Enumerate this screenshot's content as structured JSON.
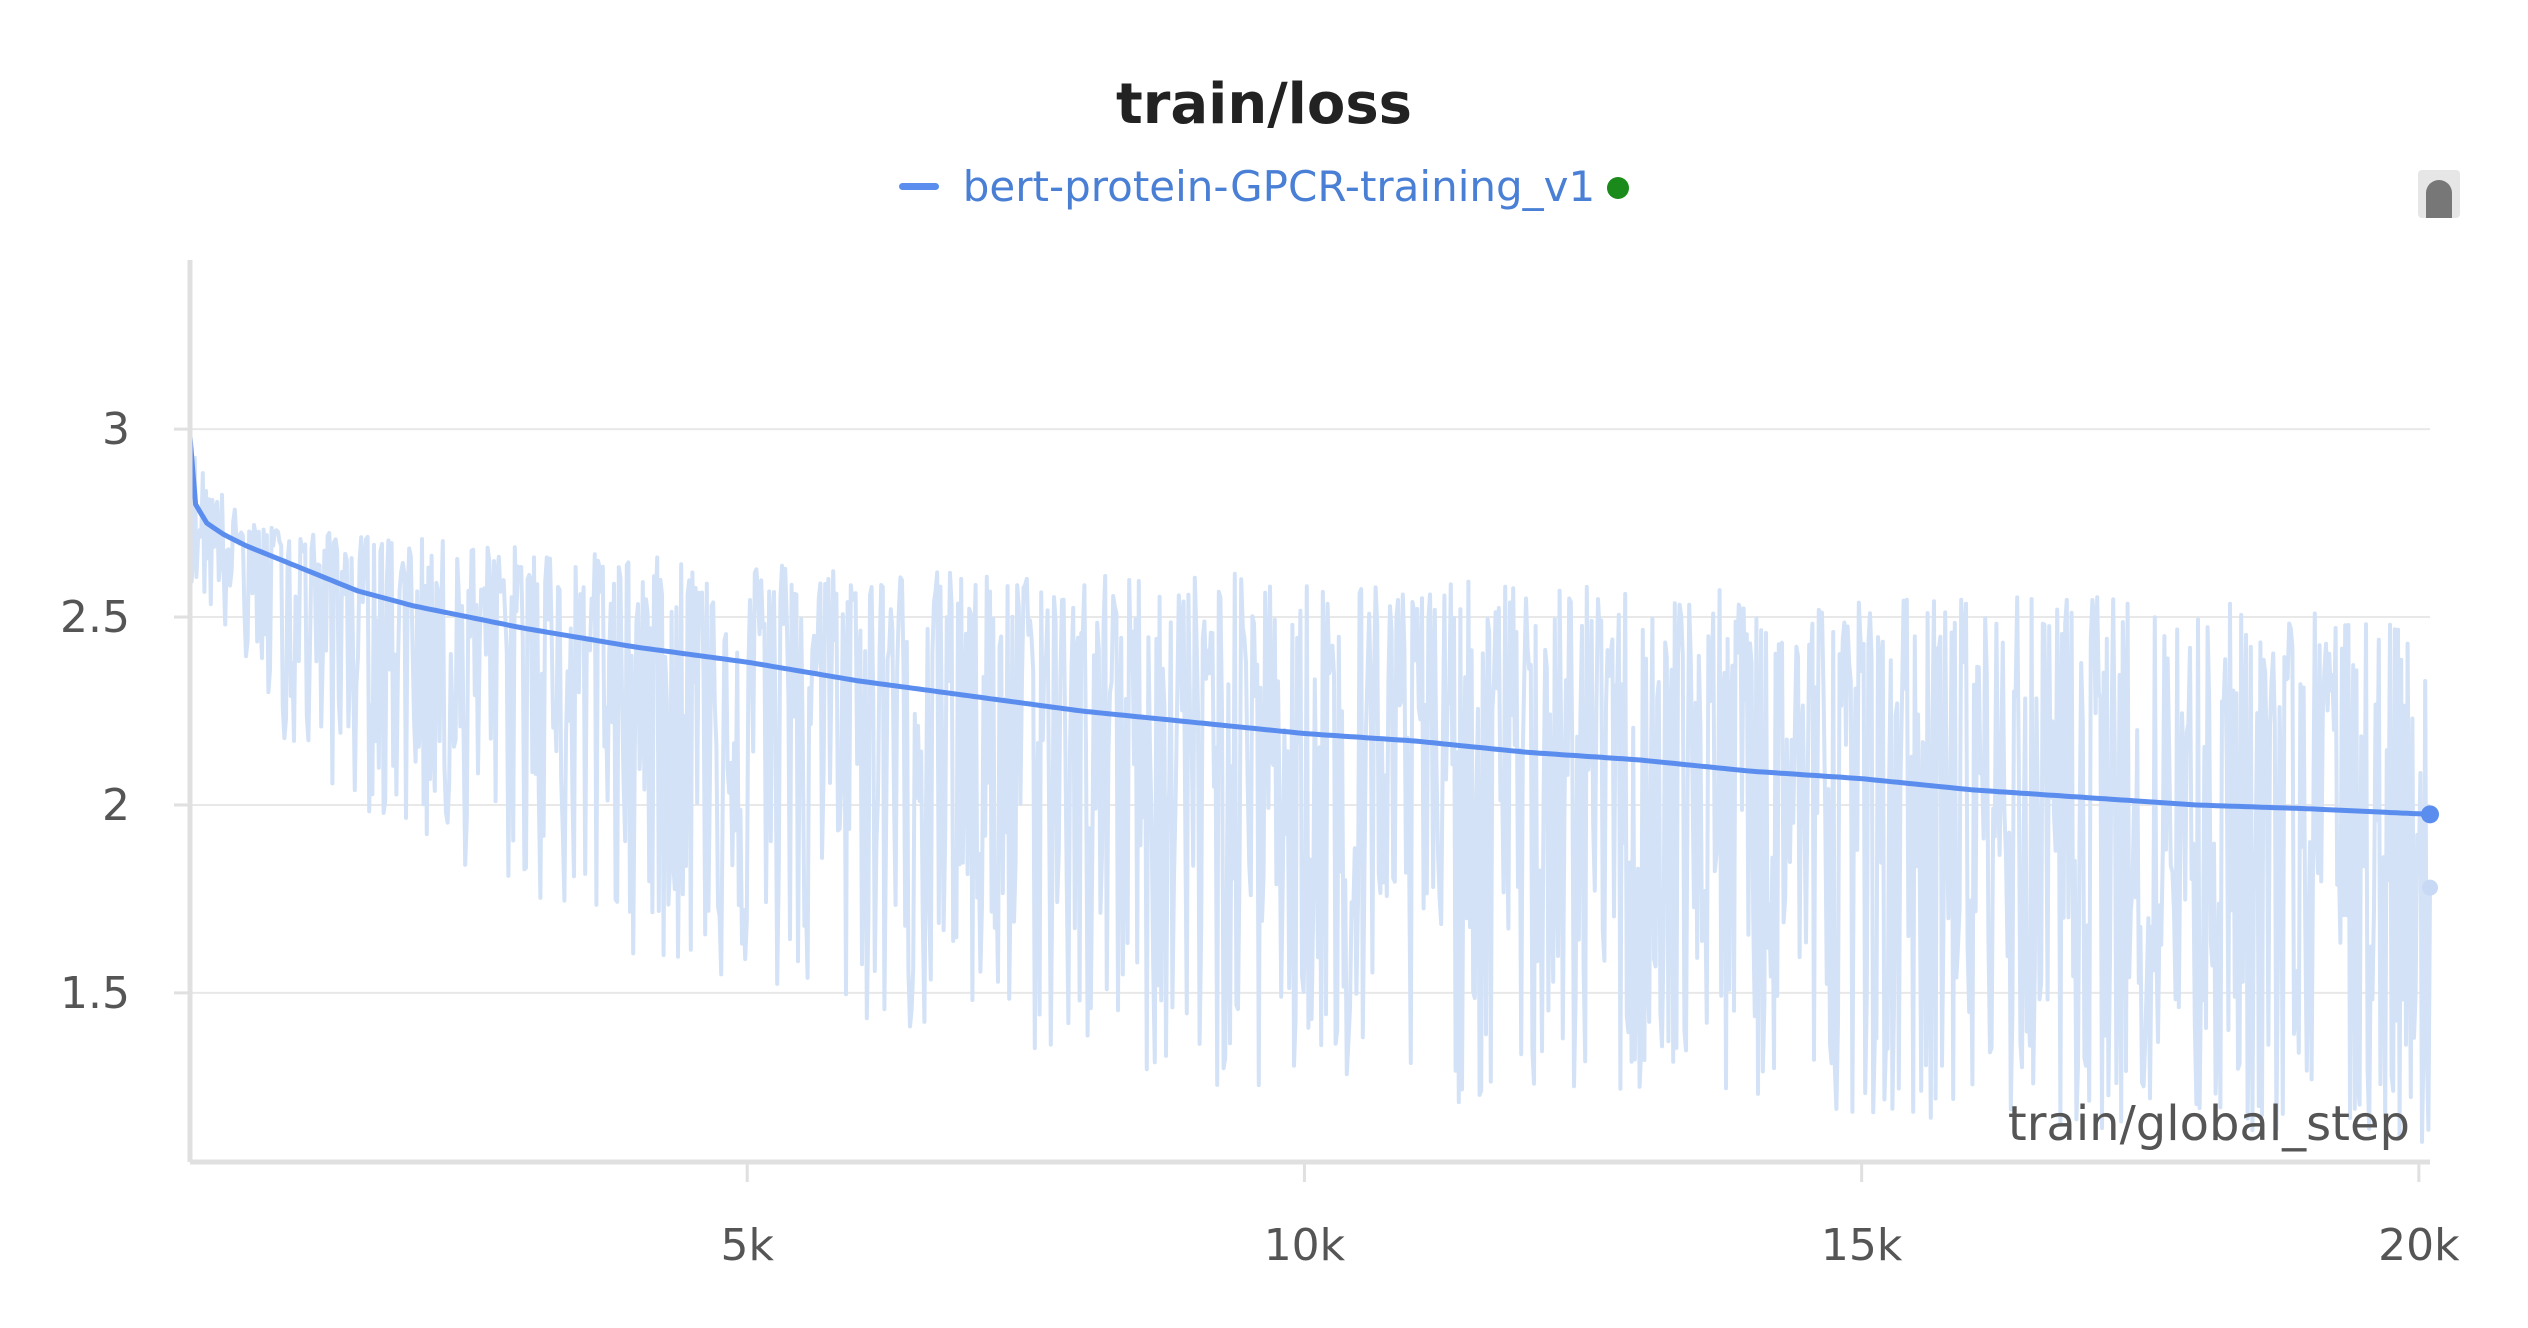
{
  "chart_data": {
    "type": "line",
    "title": "train/loss",
    "xlabel": "train/global_step",
    "ylabel": "",
    "xlim": [
      0,
      20100
    ],
    "ylim": [
      1.05,
      3.45
    ],
    "x_ticks": [
      5000,
      10000,
      15000,
      20000
    ],
    "x_tick_labels": [
      "5k",
      "10k",
      "15k",
      "20k"
    ],
    "y_ticks": [
      1.5,
      2,
      2.5,
      3
    ],
    "y_tick_labels": [
      "1.5",
      "2",
      "2.5",
      "3"
    ],
    "grid": true,
    "legend_position": "top-center",
    "series": [
      {
        "name": "bert-protein-GPCR-training_v1",
        "color": "#5b8def",
        "raw_color": "#d3e2f6",
        "status_color": "#1a8a1a",
        "smoothed": {
          "x": [
            0,
            50,
            150,
            300,
            500,
            1000,
            1500,
            2000,
            3000,
            4000,
            5000,
            6000,
            7000,
            8000,
            9000,
            10000,
            11000,
            12000,
            13000,
            14000,
            15000,
            16000,
            17000,
            18000,
            19000,
            20100
          ],
          "y": [
            2.98,
            2.8,
            2.75,
            2.72,
            2.69,
            2.63,
            2.57,
            2.53,
            2.47,
            2.42,
            2.38,
            2.33,
            2.29,
            2.25,
            2.22,
            2.19,
            2.17,
            2.14,
            2.12,
            2.09,
            2.07,
            2.04,
            2.02,
            2.0,
            1.99,
            1.975
          ]
        },
        "raw_envelope": {
          "x": [
            0,
            500,
            1000,
            2000,
            3000,
            4000,
            5000,
            6000,
            7000,
            8000,
            9000,
            10000,
            11000,
            12000,
            13000,
            14000,
            15000,
            16000,
            17000,
            18000,
            19000,
            20100
          ],
          "upper": [
            2.95,
            2.75,
            2.73,
            2.71,
            2.69,
            2.66,
            2.66,
            2.64,
            2.62,
            2.62,
            2.62,
            2.61,
            2.6,
            2.59,
            2.58,
            2.57,
            2.56,
            2.56,
            2.56,
            2.55,
            2.53,
            2.46
          ],
          "lower": [
            2.6,
            2.35,
            2.1,
            1.9,
            1.75,
            1.6,
            1.5,
            1.4,
            1.35,
            1.3,
            1.25,
            1.2,
            1.2,
            1.2,
            1.2,
            1.2,
            1.18,
            1.16,
            1.14,
            1.12,
            1.1,
            1.08
          ]
        },
        "last_smoothed": {
          "x": 20100,
          "y": 1.975
        },
        "last_raw": {
          "x": 20100,
          "y": 1.78
        }
      }
    ]
  }
}
